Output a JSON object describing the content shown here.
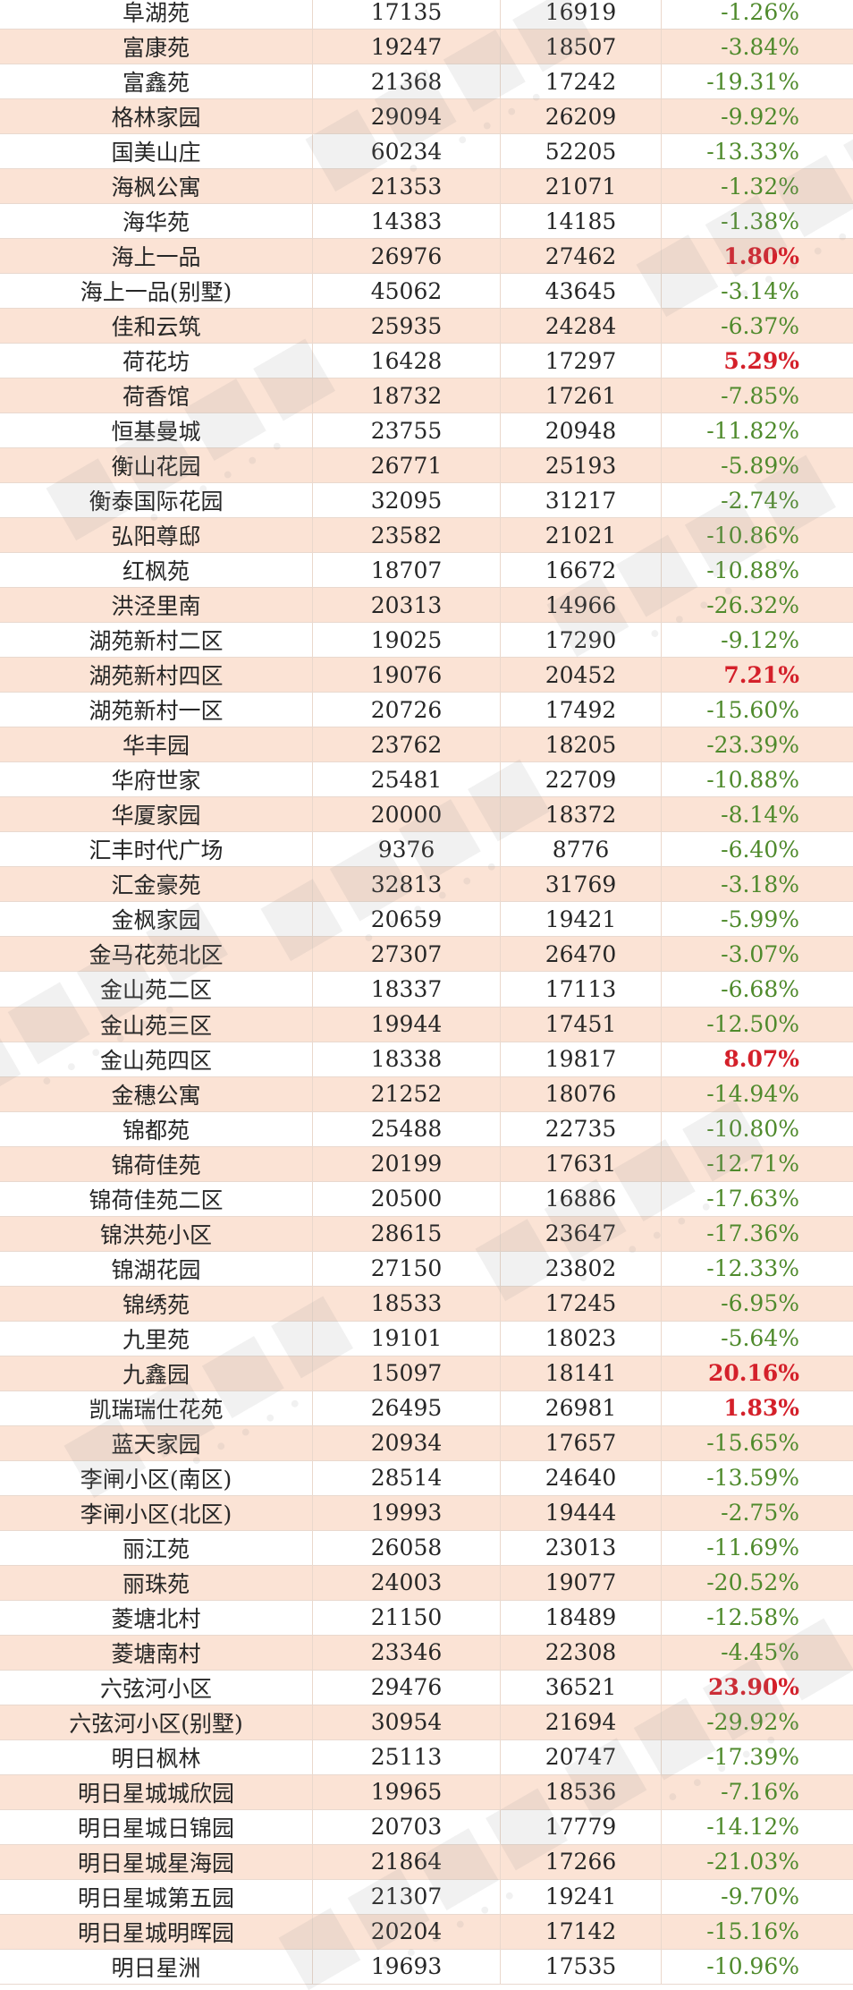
{
  "rows": [
    {
      "name": "阜湖苑",
      "a": "17135",
      "b": "16919",
      "pct": "-1.26%",
      "dir": "neg"
    },
    {
      "name": "富康苑",
      "a": "19247",
      "b": "18507",
      "pct": "-3.84%",
      "dir": "neg"
    },
    {
      "name": "富鑫苑",
      "a": "21368",
      "b": "17242",
      "pct": "-19.31%",
      "dir": "neg"
    },
    {
      "name": "格林家园",
      "a": "29094",
      "b": "26209",
      "pct": "-9.92%",
      "dir": "neg"
    },
    {
      "name": "国美山庄",
      "a": "60234",
      "b": "52205",
      "pct": "-13.33%",
      "dir": "neg"
    },
    {
      "name": "海枫公寓",
      "a": "21353",
      "b": "21071",
      "pct": "-1.32%",
      "dir": "neg"
    },
    {
      "name": "海华苑",
      "a": "14383",
      "b": "14185",
      "pct": "-1.38%",
      "dir": "neg"
    },
    {
      "name": "海上一品",
      "a": "26976",
      "b": "27462",
      "pct": "1.80%",
      "dir": "pos"
    },
    {
      "name": "海上一品(别墅)",
      "a": "45062",
      "b": "43645",
      "pct": "-3.14%",
      "dir": "neg"
    },
    {
      "name": "佳和云筑",
      "a": "25935",
      "b": "24284",
      "pct": "-6.37%",
      "dir": "neg"
    },
    {
      "name": "荷花坊",
      "a": "16428",
      "b": "17297",
      "pct": "5.29%",
      "dir": "pos"
    },
    {
      "name": "荷香馆",
      "a": "18732",
      "b": "17261",
      "pct": "-7.85%",
      "dir": "neg"
    },
    {
      "name": "恒基曼城",
      "a": "23755",
      "b": "20948",
      "pct": "-11.82%",
      "dir": "neg"
    },
    {
      "name": "衡山花园",
      "a": "26771",
      "b": "25193",
      "pct": "-5.89%",
      "dir": "neg"
    },
    {
      "name": "衡泰国际花园",
      "a": "32095",
      "b": "31217",
      "pct": "-2.74%",
      "dir": "neg"
    },
    {
      "name": "弘阳尊邸",
      "a": "23582",
      "b": "21021",
      "pct": "-10.86%",
      "dir": "neg"
    },
    {
      "name": "红枫苑",
      "a": "18707",
      "b": "16672",
      "pct": "-10.88%",
      "dir": "neg"
    },
    {
      "name": "洪泾里南",
      "a": "20313",
      "b": "14966",
      "pct": "-26.32%",
      "dir": "neg"
    },
    {
      "name": "湖苑新村二区",
      "a": "19025",
      "b": "17290",
      "pct": "-9.12%",
      "dir": "neg"
    },
    {
      "name": "湖苑新村四区",
      "a": "19076",
      "b": "20452",
      "pct": "7.21%",
      "dir": "pos"
    },
    {
      "name": "湖苑新村一区",
      "a": "20726",
      "b": "17492",
      "pct": "-15.60%",
      "dir": "neg"
    },
    {
      "name": "华丰园",
      "a": "23762",
      "b": "18205",
      "pct": "-23.39%",
      "dir": "neg"
    },
    {
      "name": "华府世家",
      "a": "25481",
      "b": "22709",
      "pct": "-10.88%",
      "dir": "neg"
    },
    {
      "name": "华厦家园",
      "a": "20000",
      "b": "18372",
      "pct": "-8.14%",
      "dir": "neg"
    },
    {
      "name": "汇丰时代广场",
      "a": "9376",
      "b": "8776",
      "pct": "-6.40%",
      "dir": "neg"
    },
    {
      "name": "汇金豪苑",
      "a": "32813",
      "b": "31769",
      "pct": "-3.18%",
      "dir": "neg"
    },
    {
      "name": "金枫家园",
      "a": "20659",
      "b": "19421",
      "pct": "-5.99%",
      "dir": "neg"
    },
    {
      "name": "金马花苑北区",
      "a": "27307",
      "b": "26470",
      "pct": "-3.07%",
      "dir": "neg"
    },
    {
      "name": "金山苑二区",
      "a": "18337",
      "b": "17113",
      "pct": "-6.68%",
      "dir": "neg"
    },
    {
      "name": "金山苑三区",
      "a": "19944",
      "b": "17451",
      "pct": "-12.50%",
      "dir": "neg"
    },
    {
      "name": "金山苑四区",
      "a": "18338",
      "b": "19817",
      "pct": "8.07%",
      "dir": "pos"
    },
    {
      "name": "金穗公寓",
      "a": "21252",
      "b": "18076",
      "pct": "-14.94%",
      "dir": "neg"
    },
    {
      "name": "锦都苑",
      "a": "25488",
      "b": "22735",
      "pct": "-10.80%",
      "dir": "neg"
    },
    {
      "name": "锦荷佳苑",
      "a": "20199",
      "b": "17631",
      "pct": "-12.71%",
      "dir": "neg"
    },
    {
      "name": "锦荷佳苑二区",
      "a": "20500",
      "b": "16886",
      "pct": "-17.63%",
      "dir": "neg"
    },
    {
      "name": "锦洪苑小区",
      "a": "28615",
      "b": "23647",
      "pct": "-17.36%",
      "dir": "neg"
    },
    {
      "name": "锦湖花园",
      "a": "27150",
      "b": "23802",
      "pct": "-12.33%",
      "dir": "neg"
    },
    {
      "name": "锦绣苑",
      "a": "18533",
      "b": "17245",
      "pct": "-6.95%",
      "dir": "neg"
    },
    {
      "name": "九里苑",
      "a": "19101",
      "b": "18023",
      "pct": "-5.64%",
      "dir": "neg"
    },
    {
      "name": "九鑫园",
      "a": "15097",
      "b": "18141",
      "pct": "20.16%",
      "dir": "pos"
    },
    {
      "name": "凯瑞瑞仕花苑",
      "a": "26495",
      "b": "26981",
      "pct": "1.83%",
      "dir": "pos"
    },
    {
      "name": "蓝天家园",
      "a": "20934",
      "b": "17657",
      "pct": "-15.65%",
      "dir": "neg"
    },
    {
      "name": "李闸小区(南区)",
      "a": "28514",
      "b": "24640",
      "pct": "-13.59%",
      "dir": "neg"
    },
    {
      "name": "李闸小区(北区)",
      "a": "19993",
      "b": "19444",
      "pct": "-2.75%",
      "dir": "neg"
    },
    {
      "name": "丽江苑",
      "a": "26058",
      "b": "23013",
      "pct": "-11.69%",
      "dir": "neg"
    },
    {
      "name": "丽珠苑",
      "a": "24003",
      "b": "19077",
      "pct": "-20.52%",
      "dir": "neg"
    },
    {
      "name": "菱塘北村",
      "a": "21150",
      "b": "18489",
      "pct": "-12.58%",
      "dir": "neg"
    },
    {
      "name": "菱塘南村",
      "a": "23346",
      "b": "22308",
      "pct": "-4.45%",
      "dir": "neg"
    },
    {
      "name": "六弦河小区",
      "a": "29476",
      "b": "36521",
      "pct": "23.90%",
      "dir": "pos"
    },
    {
      "name": "六弦河小区(别墅)",
      "a": "30954",
      "b": "21694",
      "pct": "-29.92%",
      "dir": "neg"
    },
    {
      "name": "明日枫林",
      "a": "25113",
      "b": "20747",
      "pct": "-17.39%",
      "dir": "neg"
    },
    {
      "name": "明日星城城欣园",
      "a": "19965",
      "b": "18536",
      "pct": "-7.16%",
      "dir": "neg"
    },
    {
      "name": "明日星城日锦园",
      "a": "20703",
      "b": "17779",
      "pct": "-14.12%",
      "dir": "neg"
    },
    {
      "name": "明日星城星海园",
      "a": "21864",
      "b": "17266",
      "pct": "-21.03%",
      "dir": "neg"
    },
    {
      "name": "明日星城第五园",
      "a": "21307",
      "b": "19241",
      "pct": "-9.70%",
      "dir": "neg"
    },
    {
      "name": "明日星城明晖园",
      "a": "20204",
      "b": "17142",
      "pct": "-15.16%",
      "dir": "neg"
    },
    {
      "name": "明日星洲",
      "a": "19693",
      "b": "17535",
      "pct": "-10.96%",
      "dir": "neg"
    }
  ],
  "colors": {
    "negative": "#4f8a2c",
    "positive": "#d4202a",
    "stripe": "#fbe3d5"
  }
}
